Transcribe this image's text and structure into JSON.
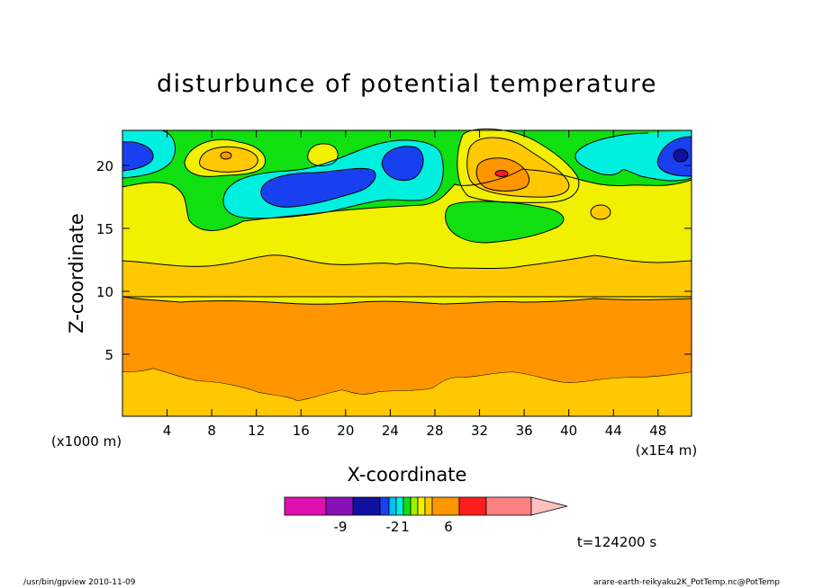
{
  "chart_data": {
    "type": "heatmap",
    "title": "disturbunce of potential temperature",
    "xlabel": "X-coordinate",
    "ylabel": "Z-coordinate",
    "x_unit": "(x1E4 m)",
    "y_unit": "(x1000 m)",
    "xlim": [
      0,
      51
    ],
    "ylim": [
      0,
      22.5
    ],
    "x_ticks": [
      4,
      8,
      12,
      16,
      20,
      24,
      28,
      32,
      36,
      40,
      44,
      48
    ],
    "y_ticks": [
      5,
      10,
      15,
      20
    ],
    "time_label": "t=124200 s",
    "colorbar": {
      "levels": [
        -12,
        -9,
        -6,
        -3,
        -2,
        -1,
        0,
        1,
        2,
        3,
        6,
        9,
        12
      ],
      "labels": [
        "-9",
        "-2",
        "1",
        "6"
      ],
      "colors": [
        "#e010b0",
        "#8810b8",
        "#1010a0",
        "#1840f0",
        "#00c0f0",
        "#00f0e0",
        "#10e010",
        "#a0f000",
        "#f0f000",
        "#ffc800",
        "#ff9600",
        "#ff1e1e",
        "#ff8080",
        "#ffc0c0"
      ]
    },
    "bands": [
      {
        "name": "z 0-3.5 (value 3-6)",
        "color": "#ffc800"
      },
      {
        "name": "z 3.5-9.5 (value 6-9)",
        "color": "#ff9600"
      },
      {
        "name": "z 9.5-12.5 (value 3-6)",
        "color": "#ffc800"
      },
      {
        "name": "z 12.5-18 (value 2-3)",
        "color": "#f0f000"
      }
    ]
  },
  "footer": {
    "left": "/usr/bin/gpview  2010-11-09",
    "right": "arare-earth-reikyaku2K_PotTemp.nc@PotTemp"
  }
}
